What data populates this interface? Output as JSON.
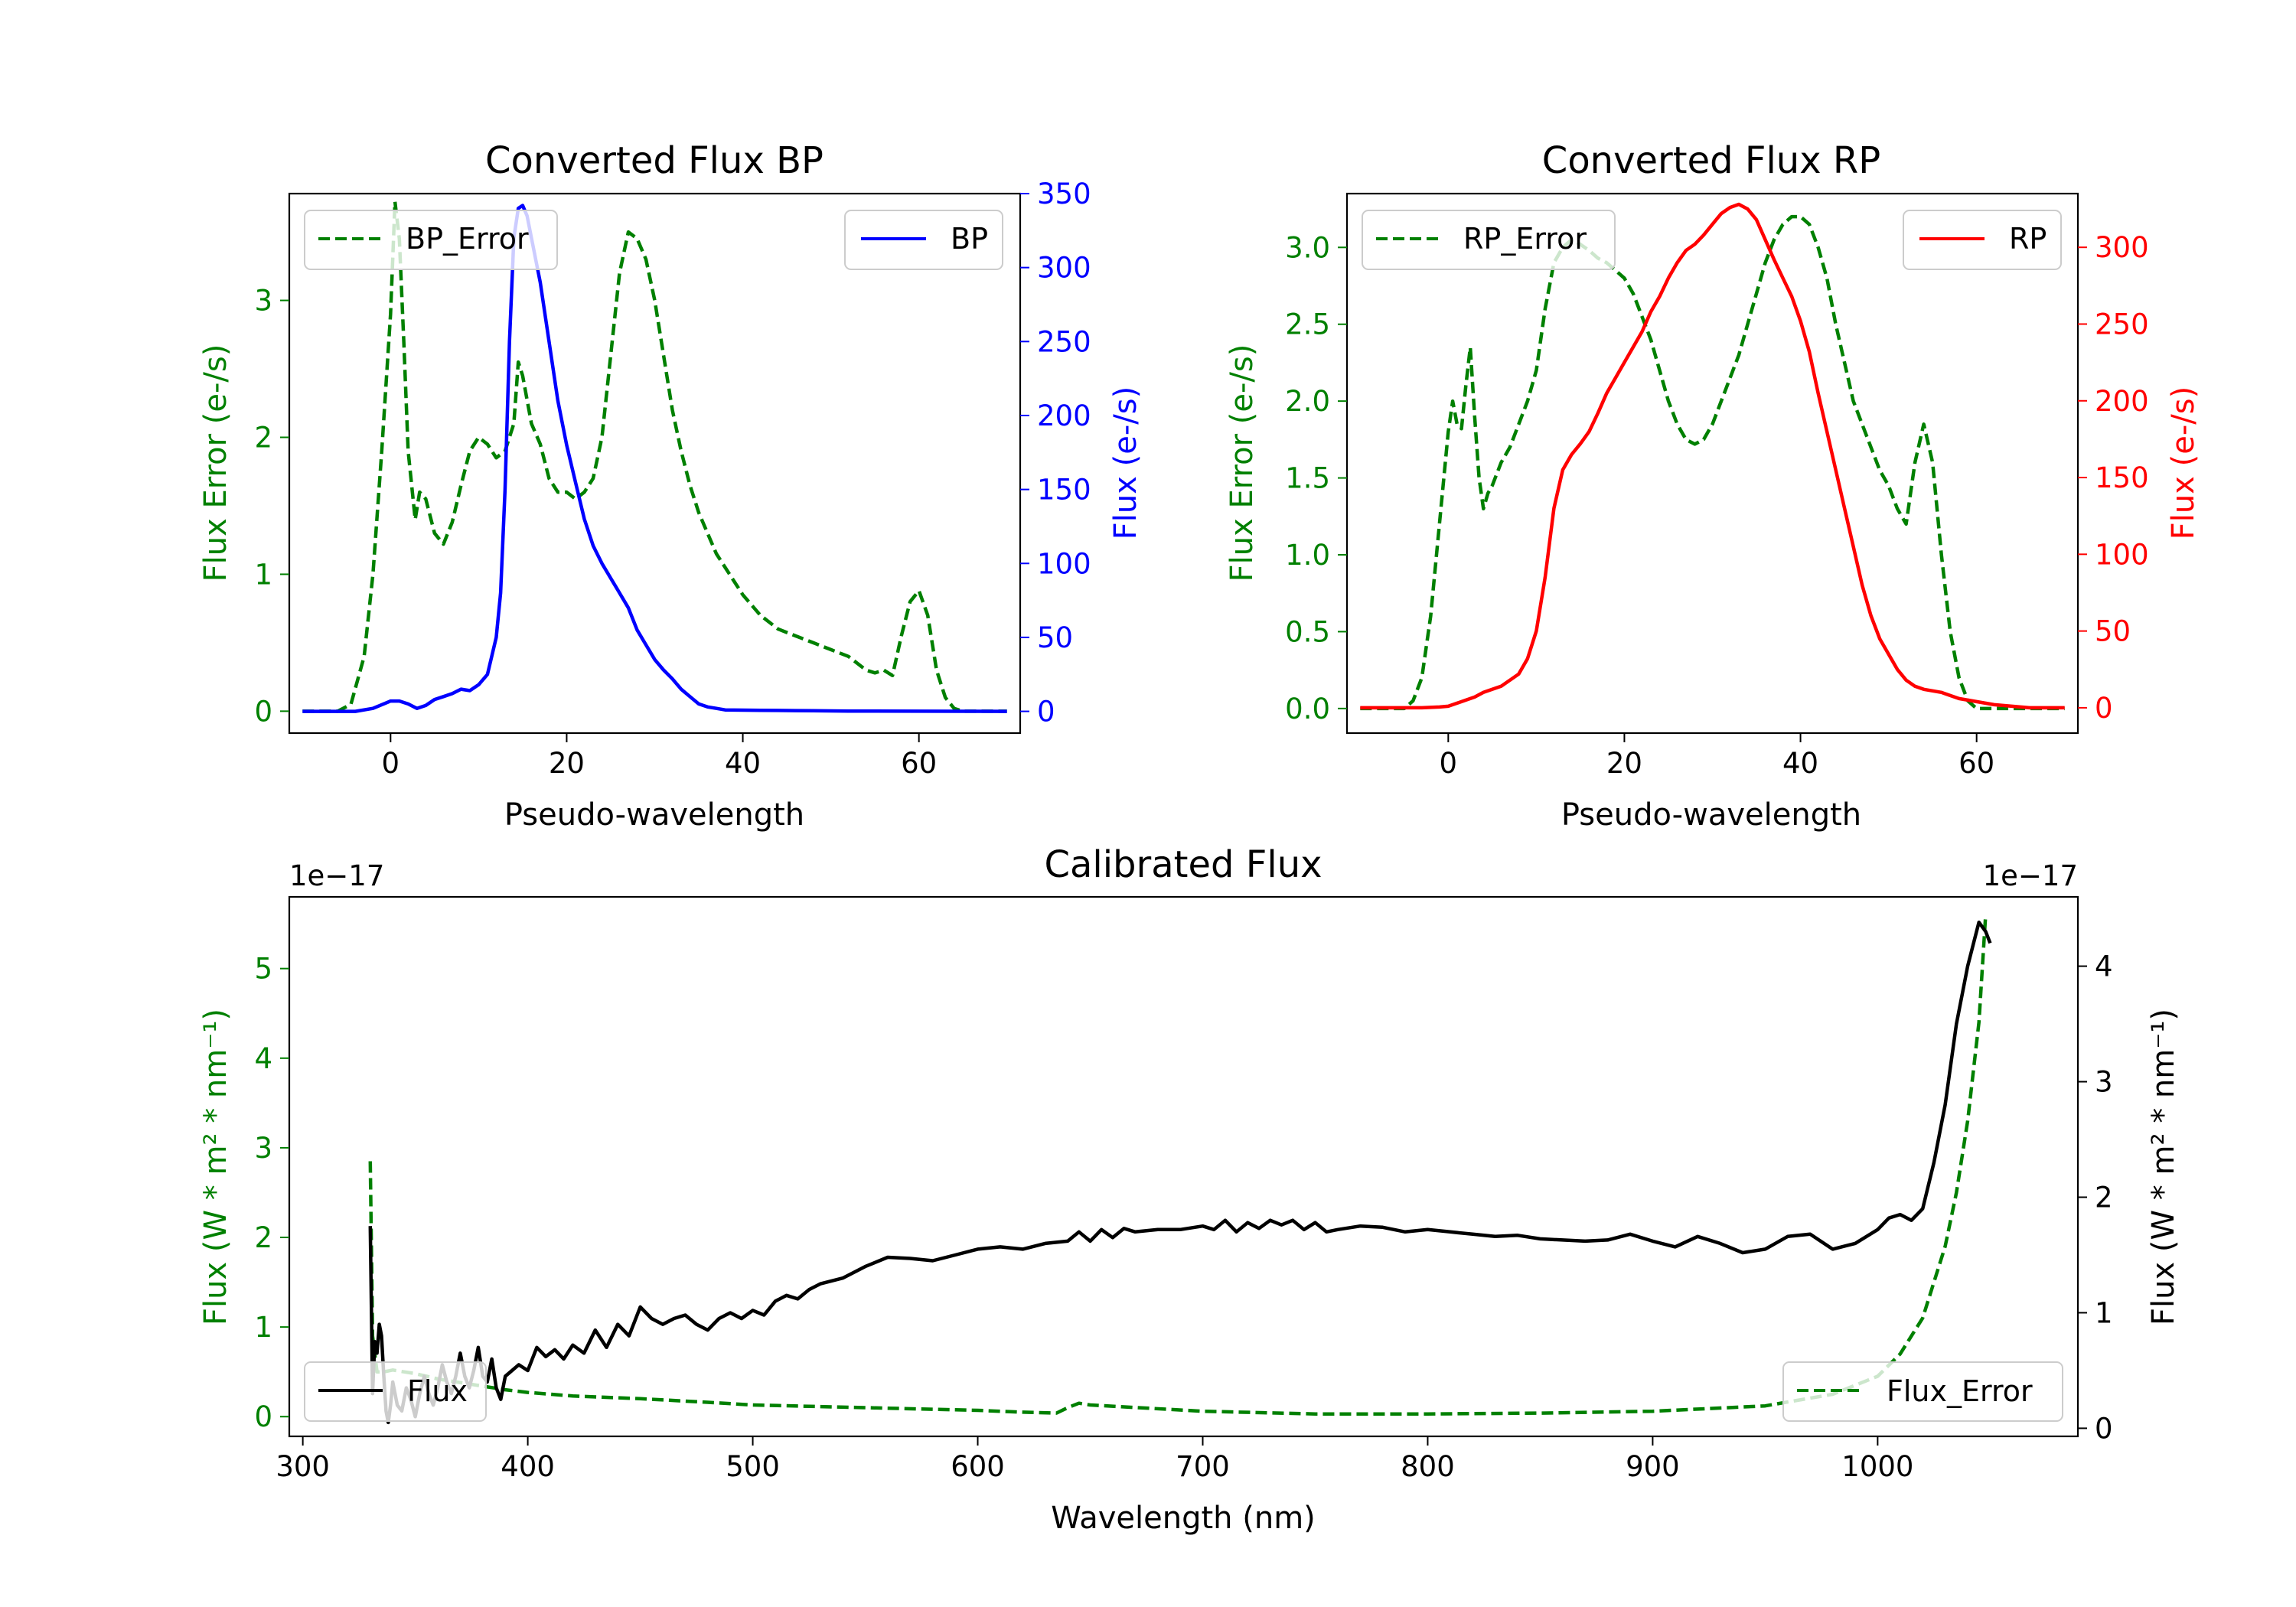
{
  "colors": {
    "green": "#008000",
    "blue": "#0000ff",
    "red": "#ff0000",
    "black": "#000000"
  },
  "chart_data": [
    {
      "id": "bp",
      "type": "line",
      "title": "Converted Flux BP",
      "xlabel": "Pseudo-wavelength",
      "ylabel": "Flux Error (e-/s)",
      "ylabel_right": "Flux (e-/s)",
      "xlim": [
        -11.5,
        71.5
      ],
      "ylim": [
        -0.16,
        3.78
      ],
      "ylim_right": [
        -14.7,
        350
      ],
      "xticks": [
        0,
        20,
        40,
        60
      ],
      "yticks": [
        0,
        1,
        2,
        3
      ],
      "yticks_right": [
        0,
        50,
        100,
        150,
        200,
        250,
        300,
        350
      ],
      "legend": [
        "BP_Error",
        "BP"
      ],
      "series": [
        {
          "name": "BP_Error",
          "axis": "left",
          "color": "#008000",
          "dash": true,
          "x": [
            -10,
            -6,
            -4.5,
            -3,
            -2,
            -1,
            0,
            0.5,
            1,
            1.5,
            2,
            2.8,
            3.3,
            4,
            5,
            6,
            7,
            8,
            9,
            10,
            11,
            12,
            13,
            14,
            14.5,
            15,
            16,
            17,
            18,
            19,
            20,
            21,
            22,
            23,
            24,
            25,
            26,
            27,
            28,
            29,
            30,
            31,
            32,
            33,
            34,
            35,
            36,
            37,
            38,
            40,
            42,
            44,
            46,
            48,
            50,
            52,
            54,
            55,
            56,
            57,
            58,
            59,
            60,
            61,
            62,
            63,
            64,
            65,
            66,
            70
          ],
          "y": [
            0,
            0,
            0.05,
            0.4,
            1.0,
            1.9,
            2.9,
            3.72,
            3.45,
            2.7,
            1.9,
            1.4,
            1.6,
            1.55,
            1.3,
            1.22,
            1.38,
            1.65,
            1.9,
            2.0,
            1.95,
            1.85,
            1.9,
            2.1,
            2.55,
            2.45,
            2.1,
            1.95,
            1.7,
            1.6,
            1.6,
            1.55,
            1.6,
            1.7,
            2.0,
            2.6,
            3.2,
            3.5,
            3.45,
            3.3,
            3.0,
            2.6,
            2.2,
            1.9,
            1.65,
            1.45,
            1.3,
            1.15,
            1.05,
            0.85,
            0.7,
            0.6,
            0.55,
            0.5,
            0.45,
            0.4,
            0.3,
            0.28,
            0.3,
            0.26,
            0.55,
            0.8,
            0.88,
            0.7,
            0.3,
            0.1,
            0.02,
            0,
            0,
            0
          ]
        },
        {
          "name": "BP",
          "axis": "right",
          "color": "#0000ff",
          "dash": false,
          "x": [
            -10,
            -4,
            -2,
            0,
            1,
            2,
            3,
            4,
            5,
            6,
            7,
            8,
            9,
            10,
            11,
            12,
            12.5,
            13,
            13.5,
            14,
            14.5,
            15,
            15.5,
            16,
            17,
            18,
            19,
            20,
            21,
            22,
            23,
            24,
            25,
            26,
            27,
            28,
            29,
            30,
            31,
            32,
            33,
            34,
            35,
            36,
            37,
            38,
            40,
            42,
            44,
            46,
            48,
            50,
            52,
            55,
            60,
            65,
            70
          ],
          "y": [
            0,
            0,
            2,
            7,
            7,
            5,
            2,
            4,
            8,
            10,
            12,
            15,
            14,
            18,
            25,
            50,
            80,
            150,
            250,
            320,
            340,
            342,
            335,
            320,
            290,
            250,
            210,
            180,
            155,
            130,
            112,
            100,
            90,
            80,
            70,
            55,
            45,
            35,
            28,
            22,
            15,
            10,
            5,
            3,
            2,
            1,
            0.8,
            0.7,
            0.6,
            0.5,
            0.4,
            0.3,
            0.2,
            0.15,
            0.1,
            0.05,
            0
          ]
        }
      ]
    },
    {
      "id": "rp",
      "type": "line",
      "title": "Converted Flux RP",
      "xlabel": "Pseudo-wavelength",
      "ylabel": "Flux Error (e-/s)",
      "ylabel_right": "Flux (e-/s)",
      "xlim": [
        -11.5,
        71.5
      ],
      "ylim": [
        -0.16,
        3.35
      ],
      "ylim_right": [
        -16.5,
        335
      ],
      "xticks": [
        0,
        20,
        40,
        60
      ],
      "yticks": [
        0.0,
        0.5,
        1.0,
        1.5,
        2.0,
        2.5,
        3.0
      ],
      "yticks_right": [
        0,
        50,
        100,
        150,
        200,
        250,
        300
      ],
      "legend": [
        "RP_Error",
        "RP"
      ],
      "series": [
        {
          "name": "RP_Error",
          "axis": "left",
          "color": "#008000",
          "dash": true,
          "x": [
            -10,
            -5,
            -4,
            -3,
            -2,
            -1,
            0,
            0.5,
            1,
            1.5,
            2,
            2.5,
            3,
            3.5,
            4,
            4.5,
            5,
            6,
            7,
            8,
            9,
            10,
            11,
            12,
            13,
            14,
            15,
            16,
            17,
            18,
            19,
            20,
            21,
            22,
            23,
            24,
            25,
            26,
            27,
            28,
            29,
            30,
            31,
            32,
            33,
            34,
            35,
            36,
            37,
            38,
            39,
            40,
            41,
            42,
            43,
            44,
            45,
            46,
            47,
            48,
            49,
            50,
            51,
            52,
            53,
            54,
            55,
            56,
            57,
            58,
            59,
            60,
            61,
            62,
            63,
            64,
            65,
            70
          ],
          "y": [
            0,
            0,
            0.05,
            0.2,
            0.6,
            1.2,
            1.8,
            2.0,
            1.85,
            1.82,
            2.1,
            2.35,
            1.9,
            1.5,
            1.3,
            1.4,
            1.45,
            1.6,
            1.7,
            1.85,
            2.0,
            2.2,
            2.6,
            2.9,
            3.0,
            3.05,
            3.02,
            2.98,
            2.93,
            2.9,
            2.85,
            2.8,
            2.7,
            2.55,
            2.4,
            2.2,
            2.0,
            1.85,
            1.75,
            1.72,
            1.75,
            1.85,
            2.0,
            2.15,
            2.3,
            2.5,
            2.7,
            2.9,
            3.05,
            3.15,
            3.2,
            3.2,
            3.15,
            3.0,
            2.8,
            2.5,
            2.25,
            2.0,
            1.85,
            1.7,
            1.55,
            1.45,
            1.3,
            1.2,
            1.6,
            1.85,
            1.6,
            1.0,
            0.5,
            0.2,
            0.05,
            0,
            0,
            0,
            0,
            0,
            0,
            0
          ]
        },
        {
          "name": "RP",
          "axis": "right",
          "color": "#ff0000",
          "dash": false,
          "x": [
            -10,
            -3,
            -1,
            0,
            1,
            2,
            3,
            4,
            5,
            6,
            7,
            8,
            9,
            10,
            11,
            12,
            13,
            14,
            15,
            16,
            17,
            18,
            19,
            20,
            21,
            22,
            23,
            24,
            25,
            26,
            27,
            28,
            29,
            30,
            31,
            32,
            33,
            34,
            35,
            36,
            37,
            38,
            39,
            40,
            41,
            42,
            43,
            44,
            45,
            46,
            47,
            48,
            49,
            50,
            51,
            52,
            53,
            54,
            55,
            56,
            57,
            58,
            60,
            62,
            64,
            66,
            70
          ],
          "y": [
            0,
            0,
            0.5,
            1,
            3,
            5,
            7,
            10,
            12,
            14,
            18,
            22,
            32,
            50,
            85,
            130,
            155,
            165,
            172,
            180,
            192,
            205,
            215,
            225,
            235,
            245,
            258,
            268,
            280,
            290,
            298,
            302,
            308,
            315,
            322,
            326,
            328,
            325,
            318,
            305,
            292,
            280,
            268,
            252,
            232,
            205,
            180,
            155,
            130,
            105,
            80,
            60,
            45,
            35,
            25,
            18,
            14,
            12,
            11,
            10,
            8,
            6,
            4,
            2,
            1,
            0,
            0
          ]
        }
      ]
    },
    {
      "id": "cal",
      "type": "line",
      "title": "Calibrated Flux",
      "xlabel": "Wavelength (nm)",
      "ylabel": "Flux (W * m² * nm⁻¹)",
      "ylabel_right": "Flux (W * m² * nm⁻¹)",
      "offset_left": "1e−17",
      "offset_right": "1e−17",
      "xlim": [
        294,
        1089
      ],
      "ylim": [
        -0.22,
        5.8
      ],
      "ylim_right": [
        -0.07,
        4.6
      ],
      "xticks": [
        300,
        400,
        500,
        600,
        700,
        800,
        900,
        1000
      ],
      "yticks": [
        0,
        1,
        2,
        3,
        4,
        5
      ],
      "yticks_right": [
        0,
        1,
        2,
        3,
        4
      ],
      "legend": [
        "Flux",
        "Flux_Error"
      ],
      "series": [
        {
          "name": "Flux_Error",
          "axis": "left",
          "color": "#008000",
          "dash": true,
          "x": [
            330,
            331,
            333,
            336,
            340,
            345,
            350,
            355,
            360,
            370,
            380,
            390,
            400,
            420,
            450,
            480,
            500,
            550,
            600,
            620,
            635,
            640,
            645,
            650,
            700,
            750,
            800,
            850,
            900,
            950,
            980,
            1000,
            1010,
            1020,
            1025,
            1030,
            1035,
            1040,
            1045,
            1048
          ],
          "y": [
            2.85,
            0.9,
            0.5,
            0.5,
            0.52,
            0.5,
            0.48,
            0.45,
            0.42,
            0.38,
            0.34,
            0.3,
            0.27,
            0.23,
            0.2,
            0.16,
            0.13,
            0.1,
            0.07,
            0.05,
            0.04,
            0.1,
            0.15,
            0.13,
            0.06,
            0.03,
            0.03,
            0.04,
            0.06,
            0.12,
            0.25,
            0.45,
            0.7,
            1.1,
            1.5,
            1.9,
            2.5,
            3.3,
            4.4,
            5.6
          ]
        },
        {
          "name": "Flux",
          "axis": "right",
          "color": "#000000",
          "dash": false,
          "x": [
            330,
            331,
            332,
            333,
            334,
            335,
            336,
            337,
            338,
            339,
            340,
            342,
            344,
            346,
            348,
            350,
            352,
            354,
            356,
            358,
            360,
            362,
            364,
            366,
            368,
            370,
            372,
            374,
            376,
            378,
            380,
            382,
            384,
            386,
            388,
            390,
            393,
            396,
            400,
            404,
            408,
            412,
            416,
            420,
            425,
            430,
            435,
            440,
            445,
            450,
            455,
            460,
            465,
            470,
            475,
            480,
            485,
            490,
            495,
            500,
            505,
            510,
            515,
            520,
            525,
            530,
            540,
            550,
            560,
            570,
            580,
            590,
            600,
            610,
            620,
            630,
            640,
            645,
            650,
            655,
            660,
            665,
            670,
            680,
            690,
            700,
            705,
            710,
            715,
            720,
            725,
            730,
            735,
            740,
            745,
            750,
            755,
            760,
            770,
            780,
            790,
            800,
            810,
            820,
            830,
            840,
            850,
            860,
            870,
            880,
            890,
            900,
            910,
            920,
            930,
            940,
            950,
            960,
            970,
            980,
            990,
            1000,
            1005,
            1010,
            1015,
            1020,
            1025,
            1030,
            1035,
            1040,
            1045,
            1048,
            1050
          ],
          "y": [
            1.75,
            0.3,
            0.75,
            0.65,
            0.9,
            0.8,
            0.45,
            0.15,
            0.05,
            0.2,
            0.4,
            0.2,
            0.15,
            0.35,
            0.25,
            0.1,
            0.3,
            0.45,
            0.3,
            0.2,
            0.35,
            0.55,
            0.4,
            0.3,
            0.45,
            0.65,
            0.45,
            0.35,
            0.5,
            0.7,
            0.45,
            0.4,
            0.6,
            0.35,
            0.25,
            0.45,
            0.5,
            0.55,
            0.5,
            0.7,
            0.62,
            0.68,
            0.6,
            0.72,
            0.65,
            0.85,
            0.7,
            0.9,
            0.8,
            1.05,
            0.95,
            0.9,
            0.95,
            0.98,
            0.9,
            0.85,
            0.95,
            1.0,
            0.95,
            1.02,
            0.98,
            1.1,
            1.15,
            1.12,
            1.2,
            1.25,
            1.3,
            1.4,
            1.48,
            1.47,
            1.45,
            1.5,
            1.55,
            1.57,
            1.55,
            1.6,
            1.62,
            1.7,
            1.62,
            1.72,
            1.65,
            1.73,
            1.7,
            1.72,
            1.72,
            1.75,
            1.72,
            1.8,
            1.7,
            1.78,
            1.73,
            1.8,
            1.76,
            1.8,
            1.72,
            1.78,
            1.7,
            1.72,
            1.75,
            1.74,
            1.7,
            1.72,
            1.7,
            1.68,
            1.66,
            1.67,
            1.64,
            1.63,
            1.62,
            1.63,
            1.68,
            1.62,
            1.57,
            1.66,
            1.6,
            1.52,
            1.55,
            1.66,
            1.68,
            1.55,
            1.6,
            1.72,
            1.82,
            1.85,
            1.8,
            1.9,
            2.3,
            2.8,
            3.5,
            4.0,
            4.38,
            4.3,
            4.2
          ]
        }
      ]
    }
  ]
}
